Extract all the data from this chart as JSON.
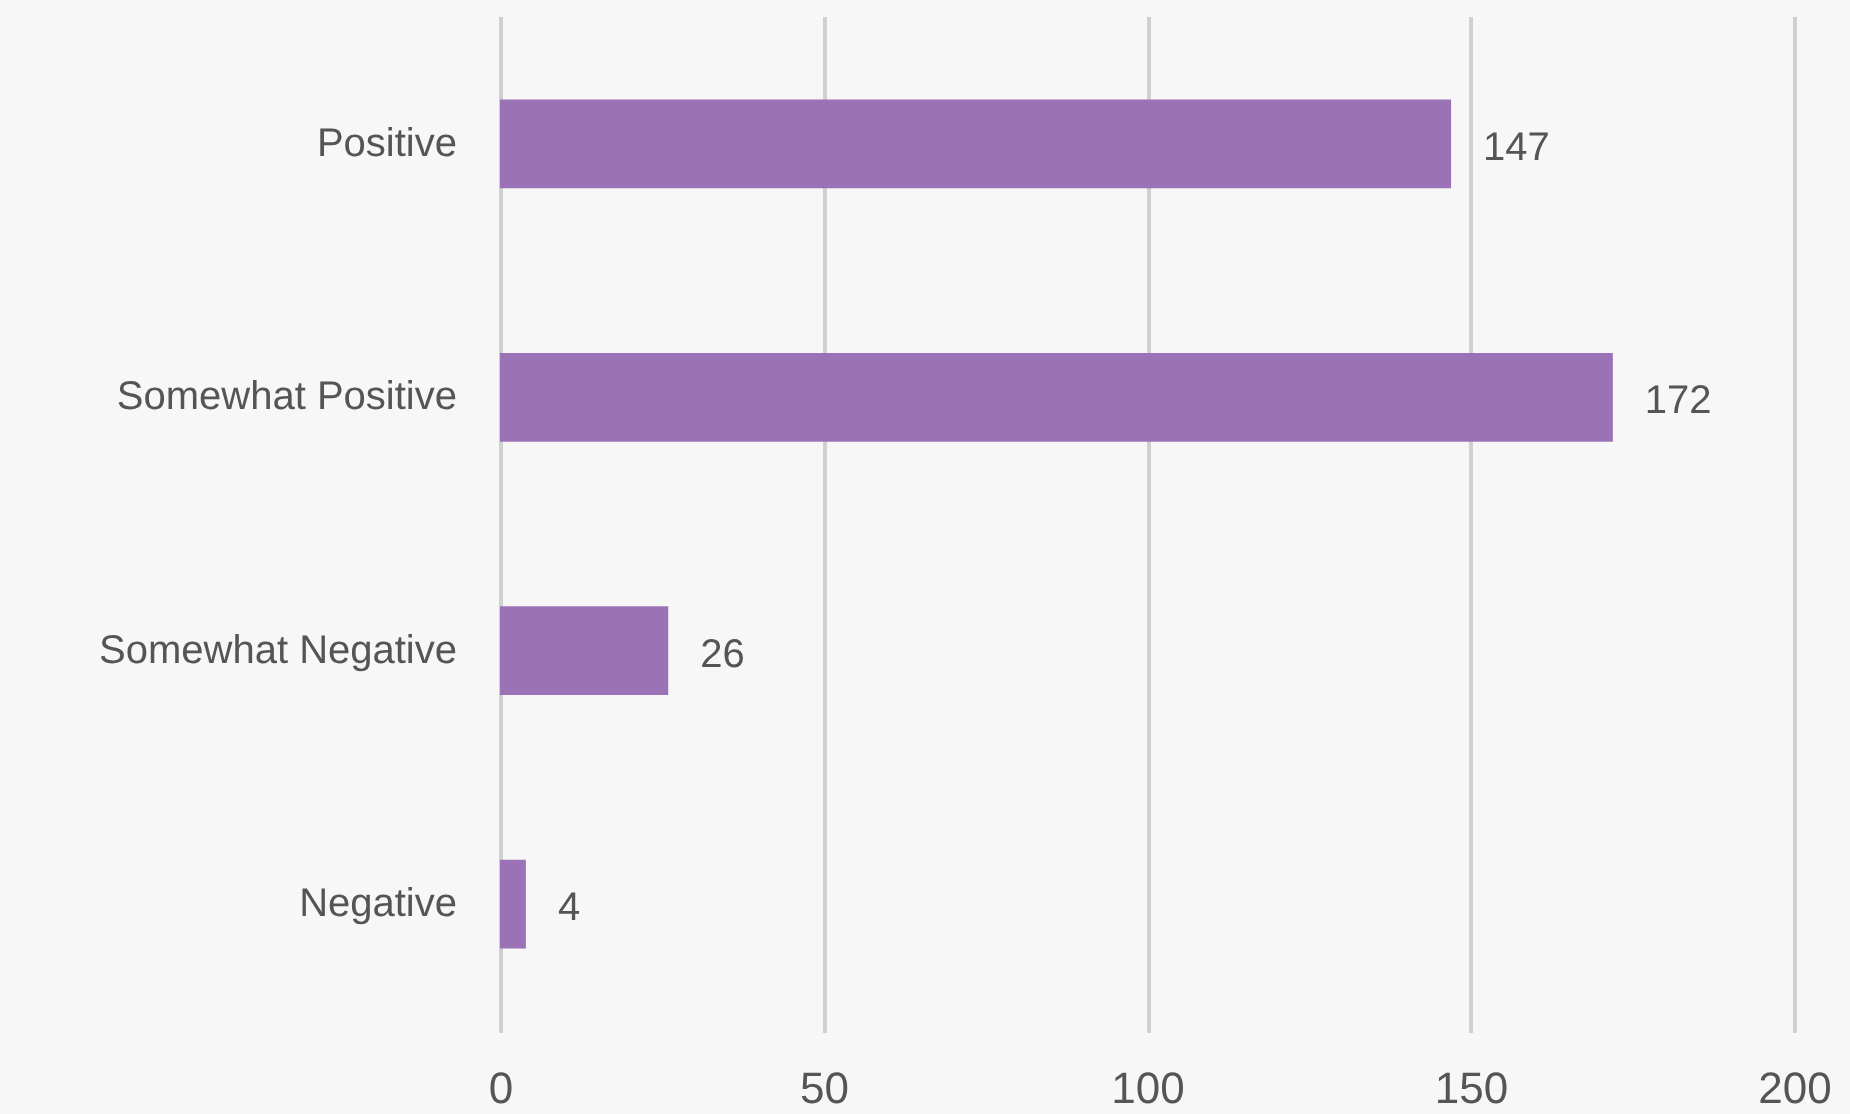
{
  "chart_data": {
    "type": "bar",
    "orientation": "horizontal",
    "categories": [
      "Positive",
      "Somewhat Positive",
      "Somewhat Negative",
      "Negative"
    ],
    "values": [
      147,
      172,
      26,
      4
    ],
    "color": "#9b72b5",
    "xlim": [
      0,
      200
    ],
    "xticks": [
      0,
      50,
      100,
      150,
      200
    ],
    "grid": "x",
    "data_labels": true
  }
}
